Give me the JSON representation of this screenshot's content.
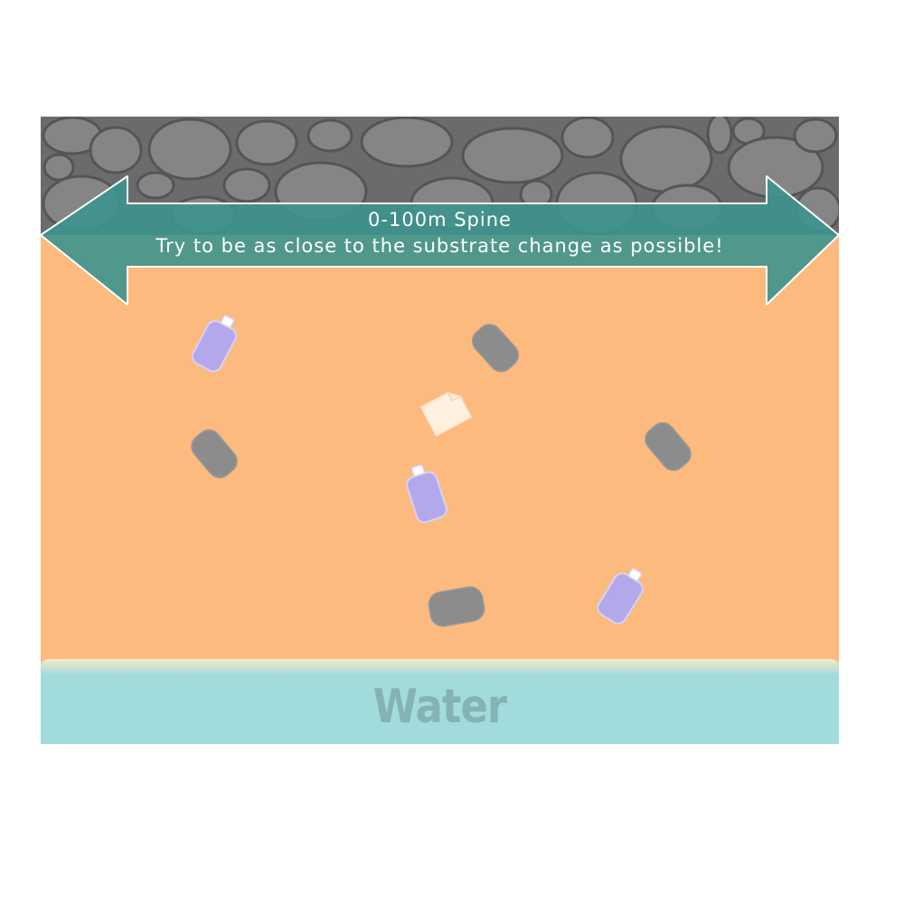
{
  "spine": {
    "title": "0-100m Spine",
    "subtitle": "Try to be as close to the substrate change as possible!"
  },
  "water": {
    "label": "Water"
  },
  "colors": {
    "sand": "#fdba7e",
    "rock_bg": "#6b6b6b",
    "rock_pebble": "#858585",
    "arrow": "#3d948e",
    "water": "#a2dbdb",
    "water_text": "#84b3b1",
    "bottle": "#b3a8ea",
    "stone": "#8c8c8c",
    "paper": "#fff0e0"
  },
  "icons": [
    "bottle-icon",
    "stone-icon",
    "paper-icon",
    "double-arrow-icon"
  ]
}
